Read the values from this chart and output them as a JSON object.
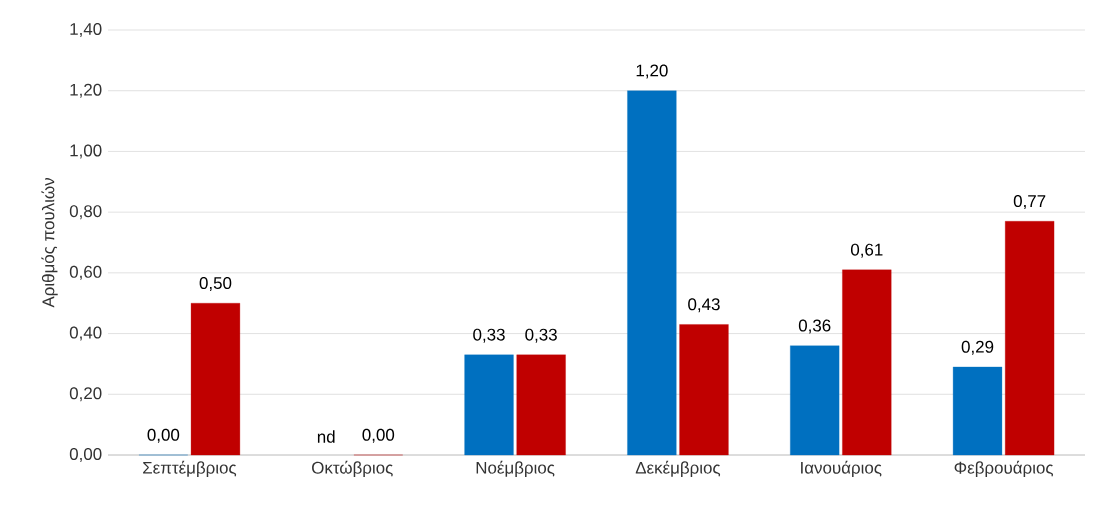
{
  "chart_data": {
    "type": "bar",
    "ylabel": "Αριθμός πουλιών",
    "categories": [
      "Σεπτέμβριος",
      "Οκτώβριος",
      "Νοέμβριος",
      "Δεκέμβριος",
      "Ιανουάριος",
      "Φεβρουάριος"
    ],
    "series": [
      {
        "color": "#0070c0",
        "values": [
          0.0,
          null,
          0.33,
          1.2,
          0.36,
          0.29
        ],
        "value_labels": [
          "0,00",
          "nd",
          "0,33",
          "1,20",
          "0,36",
          "0,29"
        ]
      },
      {
        "color": "#c00000",
        "values": [
          0.5,
          0.0,
          0.33,
          0.43,
          0.61,
          0.77
        ],
        "value_labels": [
          "0,50",
          "0,00",
          "0,33",
          "0,43",
          "0,61",
          "0,77"
        ]
      }
    ],
    "ylim": [
      0,
      1.4
    ],
    "yticks": [
      {
        "value": 0,
        "label": "0,00"
      },
      {
        "value": 0.2,
        "label": "0,20"
      },
      {
        "value": 0.4,
        "label": "0,40"
      },
      {
        "value": 0.6,
        "label": "0,60"
      },
      {
        "value": 0.8,
        "label": "0,80"
      },
      {
        "value": 1.0,
        "label": "1,00"
      },
      {
        "value": 1.2,
        "label": "1,20"
      },
      {
        "value": 1.4,
        "label": "1,40"
      }
    ],
    "grid": "y"
  }
}
